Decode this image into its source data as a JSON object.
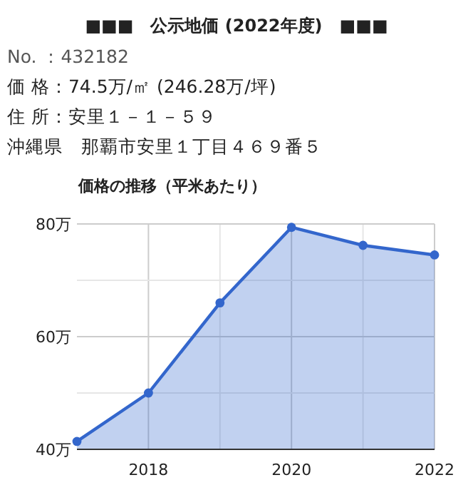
{
  "chart_data": [
    {
      "type": "other",
      "title": "■■■　公示地価 (2022年度)　■■■",
      "annotations": [
        "No. ：432182",
        "価 格：74.5万/㎡ (246.28万/坪)",
        "住 所：安里１－１－５９",
        "沖縄県　那覇市安里１丁目４６９番５"
      ]
    },
    {
      "type": "area",
      "title": "価格の推移（平米あたり）",
      "x": [
        2017,
        2018,
        2019,
        2020,
        2021,
        2022
      ],
      "series": [
        {
          "color": "#3366cc",
          "values": [
            41.4,
            50,
            66,
            79.4,
            76.2,
            74.5
          ]
        }
      ],
      "xlim": [
        2017,
        2022
      ],
      "xticks": [
        2018,
        {
          "value": 2019,
          "label": null
        },
        2020,
        {
          "value": 2021,
          "label": null
        },
        2022
      ],
      "ylim": [
        40,
        80
      ],
      "yticks": [
        {
          "value": 40,
          "label": "40万"
        },
        {
          "value": 50,
          "label": null
        },
        {
          "value": 60,
          "label": "60万"
        },
        {
          "value": 70,
          "label": null
        },
        {
          "value": 80,
          "label": "80万"
        }
      ],
      "grid": true,
      "marker": "circle"
    }
  ]
}
